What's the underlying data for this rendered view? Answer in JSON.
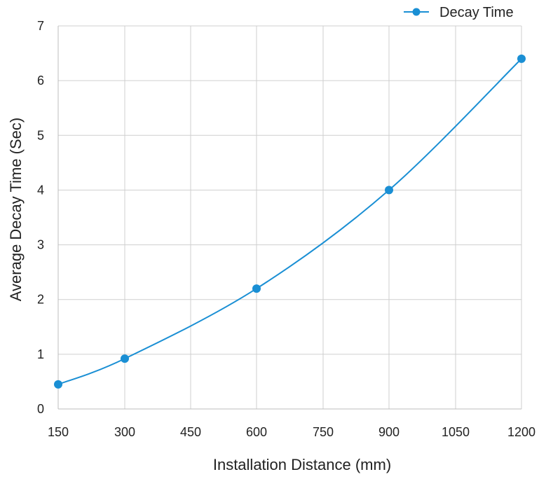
{
  "chart_data": {
    "type": "line",
    "x": [
      150,
      300,
      600,
      900,
      1200
    ],
    "series": [
      {
        "name": "Decay Time",
        "values": [
          0.45,
          0.92,
          2.2,
          4.0,
          6.4
        ],
        "color": "#1a8fd4"
      }
    ],
    "xticks": [
      150,
      300,
      450,
      600,
      750,
      900,
      1050,
      1200
    ],
    "yticks": [
      0,
      1,
      2,
      3,
      4,
      5,
      6,
      7
    ],
    "xlim": [
      150,
      1200
    ],
    "ylim": [
      0,
      7
    ],
    "xlabel": "Installation Distance (mm)",
    "ylabel": "Average Decay Time (Sec)",
    "title": "",
    "grid": true,
    "legend_position": "top-right",
    "smooth": true
  }
}
